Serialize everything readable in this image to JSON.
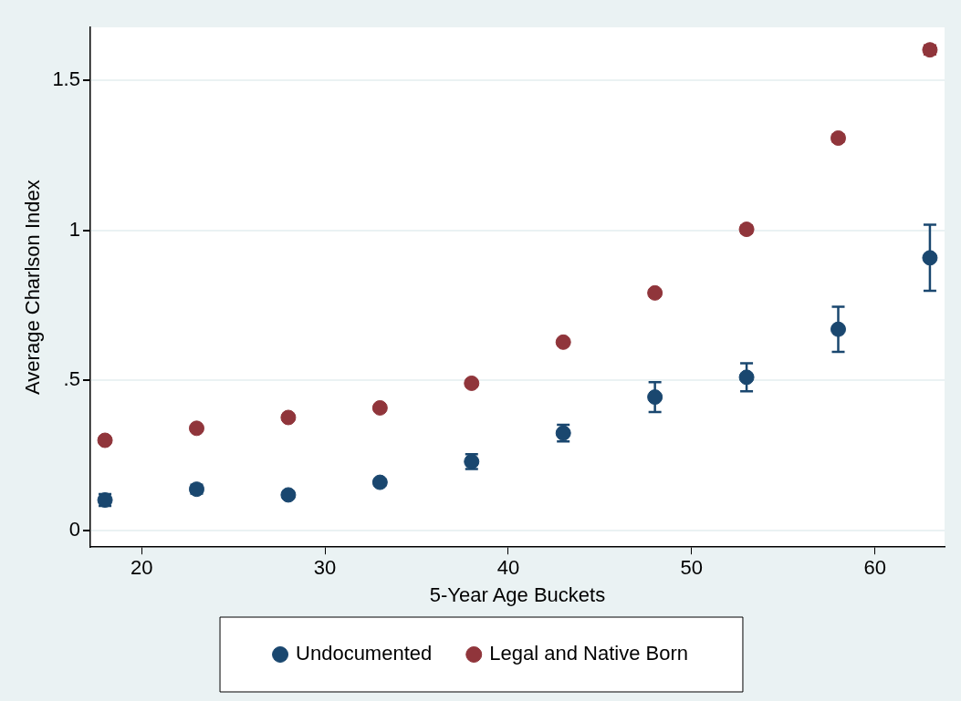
{
  "chart_data": {
    "type": "scatter",
    "xlabel": "5-Year Age Buckets",
    "ylabel": "Average Charlson Index",
    "x": [
      18,
      23,
      28,
      33,
      38,
      43,
      48,
      53,
      58,
      63
    ],
    "series": [
      {
        "name": "Undocumented",
        "color": "#1a476f",
        "values": [
          0.101,
          0.137,
          0.118,
          0.16,
          0.229,
          0.324,
          0.444,
          0.51,
          0.67,
          0.908
        ],
        "errors": [
          0.02,
          0.015,
          0.01,
          0.01,
          0.025,
          0.028,
          0.05,
          0.047,
          0.075,
          0.11
        ]
      },
      {
        "name": "Legal and Native Born",
        "color": "#90353b",
        "values": [
          0.3,
          0.34,
          0.376,
          0.408,
          0.49,
          0.627,
          0.791,
          1.003,
          1.307,
          1.601
        ],
        "errors": [
          0.008,
          0.008,
          0.008,
          0.008,
          0.008,
          0.008,
          0.01,
          0.012,
          0.012,
          0.015
        ]
      }
    ],
    "xlim": [
      17.2,
      63.8
    ],
    "xticks": [
      20,
      30,
      40,
      50,
      60
    ],
    "ylim": [
      -0.056,
      1.676
    ],
    "yticks": [
      0,
      {
        "value": 0.5,
        "label": ".5"
      },
      1,
      1.5
    ],
    "grid": "y",
    "legend": "bottom"
  }
}
